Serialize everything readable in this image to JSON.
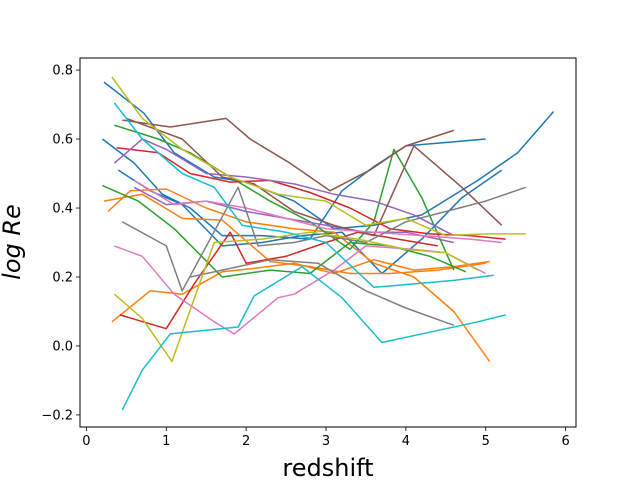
{
  "chart_data": {
    "type": "line",
    "title": "",
    "xlabel": "redshift",
    "ylabel": "log Re",
    "xlim": [
      -0.08,
      6.13
    ],
    "ylim": [
      -0.235,
      0.835
    ],
    "xticks": [
      0,
      1,
      2,
      3,
      4,
      5,
      6
    ],
    "yticks": [
      -0.2,
      0.0,
      0.2,
      0.4,
      0.6,
      0.8
    ],
    "xtick_labels": [
      "0",
      "1",
      "2",
      "3",
      "4",
      "5",
      "6"
    ],
    "ytick_labels": [
      "−0.2",
      "0.0",
      "0.2",
      "0.4",
      "0.6",
      "0.8"
    ],
    "grid": false,
    "series": [
      {
        "color": "#1f77b4",
        "points": [
          [
            0.22,
            0.765
          ],
          [
            0.72,
            0.675
          ],
          [
            1.1,
            0.56
          ],
          [
            1.6,
            0.49
          ],
          [
            2.0,
            0.475
          ],
          [
            2.6,
            0.42
          ],
          [
            3.1,
            0.34
          ],
          [
            3.6,
            0.35
          ],
          [
            4.2,
            0.38
          ],
          [
            4.9,
            0.48
          ],
          [
            5.4,
            0.56
          ],
          [
            5.85,
            0.68
          ]
        ]
      },
      {
        "color": "#1f77b4",
        "points": [
          [
            0.2,
            0.6
          ],
          [
            0.6,
            0.53
          ],
          [
            0.95,
            0.44
          ],
          [
            1.3,
            0.4
          ],
          [
            1.7,
            0.32
          ],
          [
            2.2,
            0.32
          ],
          [
            2.8,
            0.31
          ],
          [
            3.2,
            0.45
          ],
          [
            3.6,
            0.52
          ],
          [
            4.0,
            0.58
          ],
          [
            4.5,
            0.59
          ],
          [
            5.0,
            0.6
          ]
        ]
      },
      {
        "color": "#1f77b4",
        "points": [
          [
            0.4,
            0.51
          ],
          [
            0.8,
            0.45
          ],
          [
            1.2,
            0.41
          ],
          [
            1.7,
            0.29
          ],
          [
            2.2,
            0.3
          ],
          [
            2.7,
            0.32
          ],
          [
            3.2,
            0.33
          ],
          [
            3.7,
            0.21
          ],
          [
            4.2,
            0.31
          ],
          [
            4.7,
            0.43
          ],
          [
            5.2,
            0.51
          ]
        ]
      },
      {
        "color": "#ff7f0e",
        "points": [
          [
            0.27,
            0.39
          ],
          [
            0.55,
            0.45
          ],
          [
            1.0,
            0.455
          ],
          [
            1.5,
            0.4
          ],
          [
            2.0,
            0.36
          ],
          [
            2.6,
            0.34
          ],
          [
            3.1,
            0.33
          ],
          [
            3.6,
            0.24
          ],
          [
            4.1,
            0.2
          ],
          [
            4.6,
            0.1
          ],
          [
            5.05,
            -0.045
          ]
        ]
      },
      {
        "color": "#ff7f0e",
        "points": [
          [
            0.32,
            0.07
          ],
          [
            0.8,
            0.16
          ],
          [
            1.2,
            0.15
          ],
          [
            1.7,
            0.215
          ],
          [
            2.1,
            0.225
          ],
          [
            2.6,
            0.24
          ],
          [
            3.1,
            0.21
          ],
          [
            3.6,
            0.25
          ],
          [
            4.1,
            0.22
          ],
          [
            4.6,
            0.23
          ],
          [
            5.05,
            0.245
          ]
        ]
      },
      {
        "color": "#ff7f0e",
        "points": [
          [
            0.22,
            0.42
          ],
          [
            0.7,
            0.44
          ],
          [
            1.2,
            0.37
          ],
          [
            1.7,
            0.365
          ],
          [
            2.3,
            0.245
          ],
          [
            2.8,
            0.23
          ],
          [
            3.3,
            0.21
          ],
          [
            3.8,
            0.21
          ],
          [
            4.4,
            0.22
          ],
          [
            5.0,
            0.24
          ]
        ]
      },
      {
        "color": "#2ca02c",
        "points": [
          [
            0.35,
            0.64
          ],
          [
            0.9,
            0.6
          ],
          [
            1.3,
            0.56
          ],
          [
            1.8,
            0.49
          ],
          [
            2.3,
            0.42
          ],
          [
            2.8,
            0.36
          ],
          [
            3.3,
            0.28
          ],
          [
            3.6,
            0.36
          ],
          [
            3.85,
            0.57
          ],
          [
            4.2,
            0.43
          ],
          [
            4.6,
            0.22
          ]
        ]
      },
      {
        "color": "#2ca02c",
        "points": [
          [
            0.2,
            0.465
          ],
          [
            0.65,
            0.42
          ],
          [
            1.1,
            0.34
          ],
          [
            1.7,
            0.2
          ],
          [
            2.3,
            0.22
          ],
          [
            2.8,
            0.21
          ],
          [
            3.3,
            0.3
          ],
          [
            3.8,
            0.29
          ],
          [
            4.3,
            0.26
          ],
          [
            4.75,
            0.215
          ]
        ]
      },
      {
        "color": "#d62728",
        "points": [
          [
            0.38,
            0.575
          ],
          [
            0.9,
            0.56
          ],
          [
            1.3,
            0.5
          ],
          [
            1.8,
            0.475
          ],
          [
            2.3,
            0.48
          ],
          [
            2.8,
            0.445
          ],
          [
            3.3,
            0.4
          ],
          [
            3.8,
            0.34
          ],
          [
            4.3,
            0.325
          ],
          [
            4.8,
            0.32
          ],
          [
            5.25,
            0.31
          ]
        ]
      },
      {
        "color": "#d62728",
        "points": [
          [
            0.42,
            0.09
          ],
          [
            1.0,
            0.05
          ],
          [
            1.35,
            0.18
          ],
          [
            1.8,
            0.33
          ],
          [
            2.0,
            0.24
          ],
          [
            2.5,
            0.26
          ],
          [
            3.0,
            0.3
          ],
          [
            3.4,
            0.33
          ],
          [
            3.9,
            0.31
          ],
          [
            4.4,
            0.29
          ]
        ]
      },
      {
        "color": "#9467bd",
        "points": [
          [
            0.35,
            0.53
          ],
          [
            0.7,
            0.6
          ],
          [
            1.0,
            0.57
          ],
          [
            1.5,
            0.5
          ],
          [
            2.0,
            0.49
          ],
          [
            2.6,
            0.47
          ],
          [
            3.1,
            0.44
          ],
          [
            3.6,
            0.42
          ],
          [
            4.1,
            0.38
          ],
          [
            4.6,
            0.32
          ]
        ]
      },
      {
        "color": "#9467bd",
        "points": [
          [
            0.6,
            0.46
          ],
          [
            1.0,
            0.41
          ],
          [
            1.5,
            0.42
          ],
          [
            2.0,
            0.39
          ],
          [
            2.5,
            0.37
          ],
          [
            3.0,
            0.35
          ],
          [
            3.5,
            0.33
          ],
          [
            4.0,
            0.33
          ],
          [
            4.6,
            0.3
          ]
        ]
      },
      {
        "color": "#8c564b",
        "points": [
          [
            0.45,
            0.655
          ],
          [
            1.05,
            0.635
          ],
          [
            1.75,
            0.66
          ],
          [
            2.05,
            0.6
          ],
          [
            2.55,
            0.53
          ],
          [
            3.05,
            0.45
          ],
          [
            3.55,
            0.51
          ],
          [
            4.0,
            0.58
          ],
          [
            4.6,
            0.625
          ]
        ]
      },
      {
        "color": "#8c564b",
        "points": [
          [
            0.5,
            0.66
          ],
          [
            1.2,
            0.6
          ],
          [
            1.7,
            0.49
          ],
          [
            2.1,
            0.47
          ],
          [
            2.6,
            0.39
          ],
          [
            3.1,
            0.35
          ],
          [
            3.6,
            0.32
          ],
          [
            4.1,
            0.58
          ],
          [
            4.7,
            0.46
          ],
          [
            5.2,
            0.35
          ]
        ]
      },
      {
        "color": "#e377c2",
        "points": [
          [
            0.35,
            0.29
          ],
          [
            0.7,
            0.26
          ],
          [
            1.1,
            0.15
          ],
          [
            1.6,
            0.07
          ],
          [
            1.85,
            0.035
          ],
          [
            2.4,
            0.14
          ],
          [
            2.6,
            0.15
          ],
          [
            3.1,
            0.22
          ],
          [
            3.5,
            0.29
          ],
          [
            4.1,
            0.28
          ],
          [
            4.5,
            0.27
          ],
          [
            5.0,
            0.21
          ]
        ]
      },
      {
        "color": "#e377c2",
        "points": [
          [
            0.6,
            0.48
          ],
          [
            1.1,
            0.41
          ],
          [
            1.5,
            0.42
          ],
          [
            2.0,
            0.4
          ],
          [
            2.5,
            0.37
          ],
          [
            3.0,
            0.34
          ],
          [
            3.6,
            0.33
          ],
          [
            4.2,
            0.32
          ],
          [
            4.8,
            0.31
          ],
          [
            5.2,
            0.3
          ]
        ]
      },
      {
        "color": "#7f7f7f",
        "points": [
          [
            0.45,
            0.36
          ],
          [
            1.0,
            0.29
          ],
          [
            1.2,
            0.16
          ],
          [
            1.9,
            0.46
          ],
          [
            2.15,
            0.29
          ],
          [
            2.6,
            0.3
          ],
          [
            3.0,
            0.32
          ],
          [
            3.5,
            0.3
          ],
          [
            4.0,
            0.36
          ],
          [
            4.5,
            0.39
          ],
          [
            5.0,
            0.42
          ],
          [
            5.5,
            0.46
          ]
        ]
      },
      {
        "color": "#7f7f7f",
        "points": [
          [
            1.3,
            0.2
          ],
          [
            1.7,
            0.22
          ],
          [
            2.3,
            0.25
          ],
          [
            2.9,
            0.24
          ],
          [
            3.5,
            0.16
          ],
          [
            4.0,
            0.11
          ],
          [
            4.6,
            0.06
          ]
        ]
      },
      {
        "color": "#bcbd22",
        "points": [
          [
            0.32,
            0.78
          ],
          [
            0.7,
            0.66
          ],
          [
            1.2,
            0.57
          ],
          [
            1.8,
            0.49
          ],
          [
            2.4,
            0.44
          ],
          [
            3.0,
            0.42
          ],
          [
            3.5,
            0.35
          ],
          [
            4.0,
            0.37
          ],
          [
            4.5,
            0.32
          ],
          [
            5.0,
            0.325
          ],
          [
            5.5,
            0.325
          ]
        ]
      },
      {
        "color": "#bcbd22",
        "points": [
          [
            0.35,
            0.15
          ],
          [
            0.7,
            0.08
          ],
          [
            1.07,
            -0.045
          ],
          [
            1.6,
            0.3
          ],
          [
            2.2,
            0.31
          ],
          [
            2.8,
            0.33
          ],
          [
            3.4,
            0.31
          ],
          [
            4.0,
            0.28
          ],
          [
            4.5,
            0.27
          ],
          [
            4.9,
            0.22
          ]
        ]
      },
      {
        "color": "#17becf",
        "points": [
          [
            0.45,
            -0.185
          ],
          [
            0.7,
            -0.07
          ],
          [
            1.05,
            0.035
          ],
          [
            1.9,
            0.055
          ],
          [
            2.1,
            0.145
          ],
          [
            2.7,
            0.23
          ],
          [
            3.2,
            0.14
          ],
          [
            3.7,
            0.01
          ],
          [
            4.3,
            0.04
          ],
          [
            4.9,
            0.07
          ],
          [
            5.25,
            0.09
          ]
        ]
      },
      {
        "color": "#17becf",
        "points": [
          [
            0.35,
            0.705
          ],
          [
            0.7,
            0.6
          ],
          [
            1.2,
            0.5
          ],
          [
            1.6,
            0.46
          ],
          [
            1.95,
            0.35
          ],
          [
            2.5,
            0.33
          ],
          [
            3.0,
            0.3
          ],
          [
            3.6,
            0.17
          ],
          [
            4.1,
            0.18
          ],
          [
            4.6,
            0.19
          ],
          [
            5.1,
            0.205
          ]
        ]
      }
    ]
  }
}
